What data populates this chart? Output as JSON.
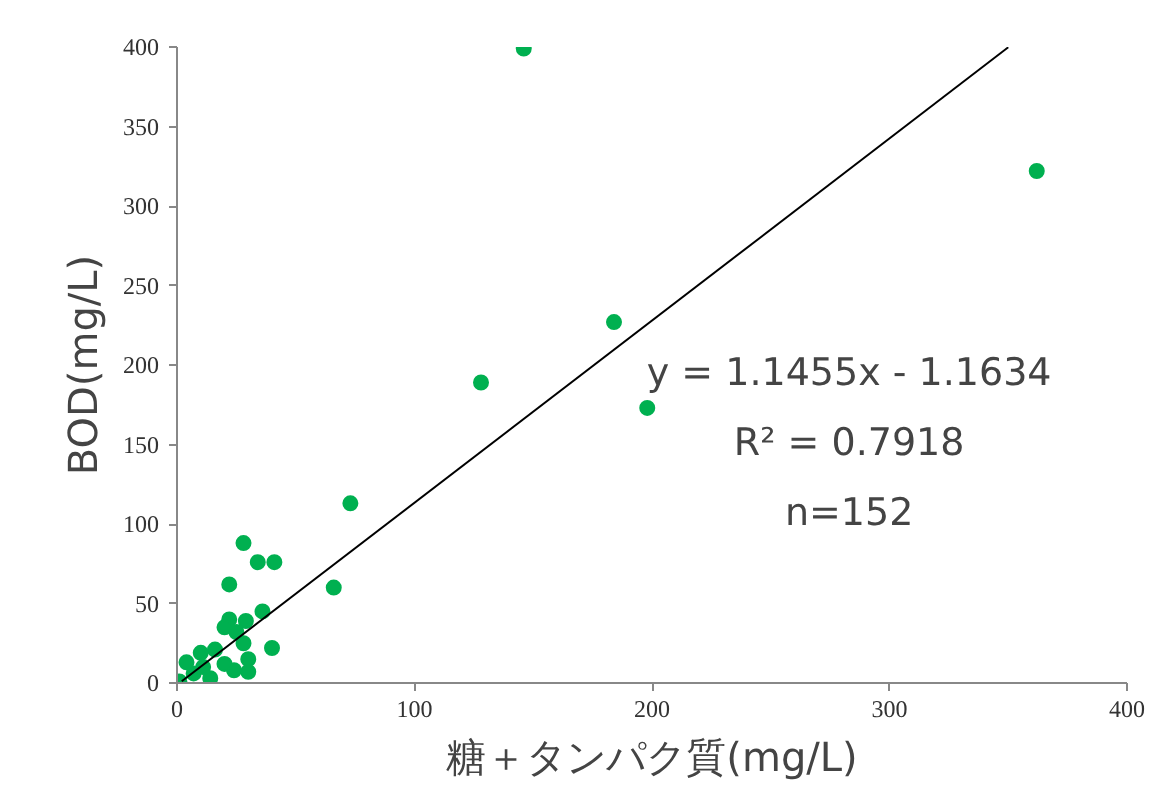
{
  "chart_data": {
    "type": "scatter",
    "xlabel": "糖＋タンパク質(mg/L)",
    "ylabel": "BOD(mg/L)",
    "xlim": [
      0,
      400
    ],
    "ylim": [
      0,
      400
    ],
    "xticks": [
      0,
      100,
      200,
      300,
      400
    ],
    "yticks": [
      0,
      50,
      100,
      150,
      200,
      250,
      300,
      350,
      400
    ],
    "grid": false,
    "annotations": [
      "y = 1.1455x - 1.1634",
      "R² = 0.7918",
      "n=152"
    ],
    "series": [
      {
        "color": "#00b050",
        "marker": "circle",
        "x": [
          146,
          362,
          184,
          128,
          198,
          73,
          66,
          28,
          34,
          41,
          22,
          36,
          40,
          30,
          30,
          29,
          22,
          20,
          25,
          28,
          24,
          10,
          16,
          1,
          7,
          14,
          4,
          20,
          11
        ],
        "values": [
          399,
          322,
          227,
          189,
          173,
          113,
          60,
          88,
          76,
          76,
          62,
          45,
          22,
          7,
          15,
          39,
          40,
          35,
          32,
          25,
          8,
          19,
          21,
          1,
          6,
          3,
          13,
          12,
          10
        ]
      },
      {
        "type": "line",
        "color": "#000000",
        "marker": "none",
        "x": [
          2,
          350
        ],
        "values": [
          1.1,
          399.8
        ]
      }
    ]
  }
}
